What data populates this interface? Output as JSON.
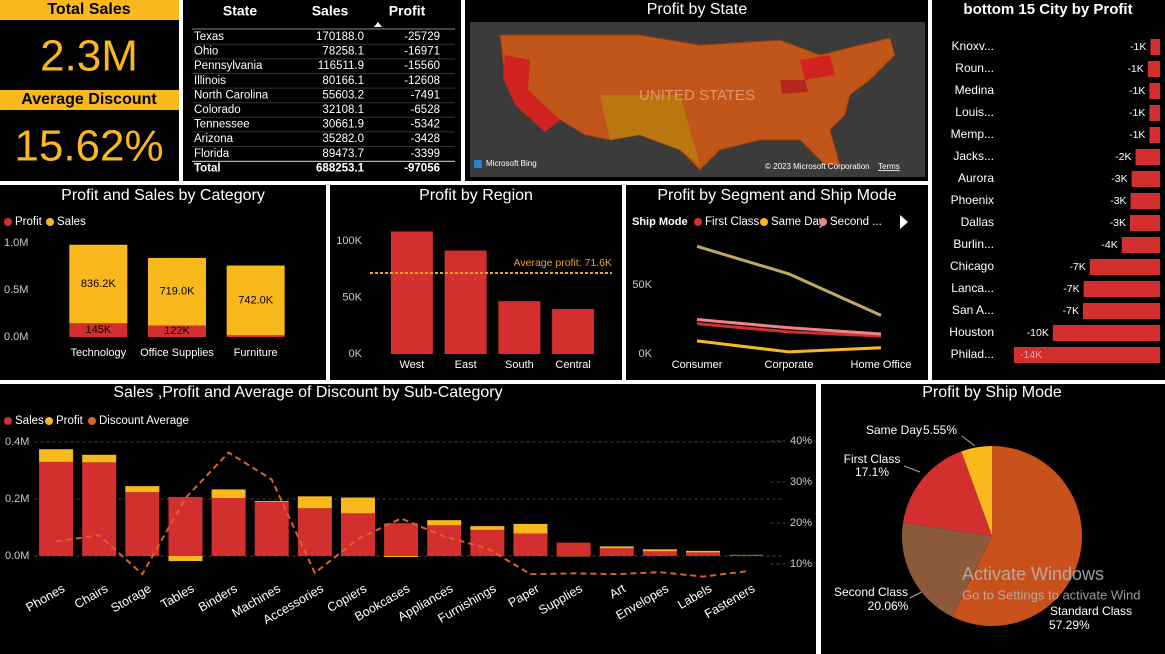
{
  "cards": [
    {
      "title": "Total Sales",
      "value": "2.3M"
    },
    {
      "title": "Average Discount",
      "value": "15.62%"
    }
  ],
  "table": {
    "columns": [
      "State",
      "Sales",
      "Profit"
    ],
    "rows": [
      [
        "Texas",
        "170188.0",
        "-25729"
      ],
      [
        "Ohio",
        "78258.1",
        "-16971"
      ],
      [
        "Pennsylvania",
        "116511.9",
        "-15560"
      ],
      [
        "Illinois",
        "80166.1",
        "-12608"
      ],
      [
        "North Carolina",
        "55603.2",
        "-7491"
      ],
      [
        "Colorado",
        "32108.1",
        "-6528"
      ],
      [
        "Tennessee",
        "30661.9",
        "-5342"
      ],
      [
        "Arizona",
        "35282.0",
        "-3428"
      ],
      [
        "Florida",
        "89473.7",
        "-3399"
      ]
    ],
    "total": [
      "Total",
      "688253.1",
      "-97056"
    ]
  },
  "map": {
    "title": "Profit by State",
    "label": "UNITED STATES",
    "provider": "Microsoft Bing",
    "copyright": "© 2023 Microsoft Corporation",
    "terms": "Terms"
  },
  "watermark": {
    "title": "Activate Windows",
    "subtitle": "Go to Settings to activate Wind"
  },
  "chart_data": [
    {
      "type": "bar",
      "orientation": "horizontal",
      "title": "bottom 15 City by Profit",
      "categories": [
        "Knoxv...",
        "Roun...",
        "Medina",
        "Louis...",
        "Memp...",
        "Jacks...",
        "Aurora",
        "Phoenix",
        "Dallas",
        "Burlin...",
        "Chicago",
        "Lanca...",
        "San A...",
        "Houston",
        "Philad..."
      ],
      "values": [
        -908,
        -1158,
        -1008,
        -1006,
        -1000,
        -2323,
        -2691,
        -2790,
        -2846,
        -3623,
        -6655,
        -7239,
        -7299,
        -10153,
        -13838
      ],
      "value_labels": [
        "-1K",
        "-1K",
        "-1K",
        "-1K",
        "-1K",
        "-2K",
        "-3K",
        "-3K",
        "-3K",
        "-4K",
        "-7K",
        "-7K",
        "-7K",
        "-10K",
        "-14K"
      ],
      "color": "#d32f2f"
    },
    {
      "type": "stacked_bar",
      "title": "Profit and Sales by Category",
      "categories": [
        "Technology",
        "Office Supplies",
        "Furniture"
      ],
      "series": [
        {
          "name": "Profit",
          "color": "#d32f2f",
          "values": [
            145454.9,
            122490.8,
            18451.3
          ],
          "value_labels": [
            "145K",
            "122K",
            null
          ]
        },
        {
          "name": "Sales",
          "color": "#f9b81c",
          "values": [
            836154.0,
            719047.0,
            741999.8
          ],
          "value_labels": [
            "836.2K",
            "719.0K",
            "742.0K"
          ]
        }
      ],
      "ylim": [
        0,
        1080000
      ],
      "yticks": [
        {
          "value": 0,
          "label": "0.0M"
        },
        {
          "value": 500000,
          "label": "0.5M"
        },
        {
          "value": 1000000,
          "label": "1.0M"
        }
      ]
    },
    {
      "type": "bar",
      "orientation": "vertical",
      "title": "Profit by Region",
      "categories": [
        "West",
        "East",
        "South",
        "Central"
      ],
      "values": [
        108418,
        91523,
        46749,
        39706
      ],
      "color": "#d32f2f",
      "ylim": [
        0,
        112000
      ],
      "yticks": [
        {
          "value": 0,
          "label": "0K"
        },
        {
          "value": 50000,
          "label": "50K"
        },
        {
          "value": 100000,
          "label": "100K"
        }
      ],
      "average": {
        "value": 71649,
        "label": "Average profit: 71.6K",
        "color": "#f0a030"
      }
    },
    {
      "type": "line",
      "title": "Profit by Segment and Ship Mode",
      "legend_title": "Ship Mode",
      "categories": [
        "Consumer",
        "Corporate",
        "Home Office"
      ],
      "series": [
        {
          "name": "First Class",
          "color": "#d32f2f",
          "values": [
            22000,
            16000,
            13000
          ]
        },
        {
          "name": "Same Day",
          "color": "#f9b81c",
          "values": [
            9500,
            1500,
            4500
          ]
        },
        {
          "name": "Second ...",
          "color": "#e8868a",
          "values": [
            25000,
            19000,
            14500
          ]
        },
        {
          "color": "#c0a860",
          "values": [
            78000,
            58000,
            28000
          ]
        }
      ],
      "ylim": [
        0,
        80000
      ],
      "yticks": [
        {
          "value": 0,
          "label": "0K"
        },
        {
          "value": 50000,
          "label": "50K"
        }
      ]
    },
    {
      "type": "combo",
      "title": "Sales ,Profit and Average of Discount by Sub-Category",
      "categories": [
        "Phones",
        "Chairs",
        "Storage",
        "Tables",
        "Binders",
        "Machines",
        "Accessories",
        "Copiers",
        "Bookcases",
        "Appliances",
        "Furnishings",
        "Paper",
        "Supplies",
        "Art",
        "Envelopes",
        "Labels",
        "Fasteners"
      ],
      "series": [
        {
          "name": "Sales",
          "color": "#d32f2f",
          "values": [
            330007,
            328449,
            223844,
            206966,
            203413,
            189239,
            167380,
            149528,
            114880,
            107532,
            91705,
            78479,
            46674,
            27119,
            16476,
            12486,
            3024
          ]
        },
        {
          "name": "Profit",
          "color": "#f9b81c",
          "values": [
            44516,
            26590,
            21279,
            -17725,
            30222,
            3385,
            41937,
            55618,
            -3473,
            18138,
            13059,
            34054,
            -1189,
            6528,
            6964,
            5546,
            950
          ]
        },
        {
          "name": "Discount Average",
          "color": "#d9622b",
          "axis": "y2",
          "values": [
            15.5,
            17.0,
            7.5,
            26.1,
            37.2,
            30.6,
            7.8,
            16.1,
            21.1,
            16.7,
            13.8,
            7.5,
            7.7,
            7.5,
            8.0,
            6.9,
            8.2
          ]
        }
      ],
      "ylim": [
        -66700,
        442000
      ],
      "yticks": [
        {
          "value": 0,
          "label": "0.0M"
        },
        {
          "value": 200000,
          "label": "0.2M"
        },
        {
          "value": 400000,
          "label": "0.4M"
        }
      ],
      "y2lim": [
        7.3,
        42.7
      ],
      "y2ticks": [
        {
          "value": 10,
          "label": "10%"
        },
        {
          "value": 20,
          "label": "20%"
        },
        {
          "value": 30,
          "label": "30%"
        },
        {
          "value": 40,
          "label": "40%"
        }
      ],
      "grid": true
    },
    {
      "type": "pie",
      "title": "Profit by Ship Mode",
      "categories": [
        "Same Day",
        "First Class",
        "Second Class",
        "Standard Class"
      ],
      "values": [
        5.55,
        17.1,
        20.06,
        57.29
      ],
      "value_labels": [
        "5.55%",
        "17.1%",
        "20.06%",
        "57.29%"
      ],
      "colors": [
        "#f9b81c",
        "#d32f2f",
        "#8b5a3a",
        "#c8501a"
      ]
    }
  ]
}
